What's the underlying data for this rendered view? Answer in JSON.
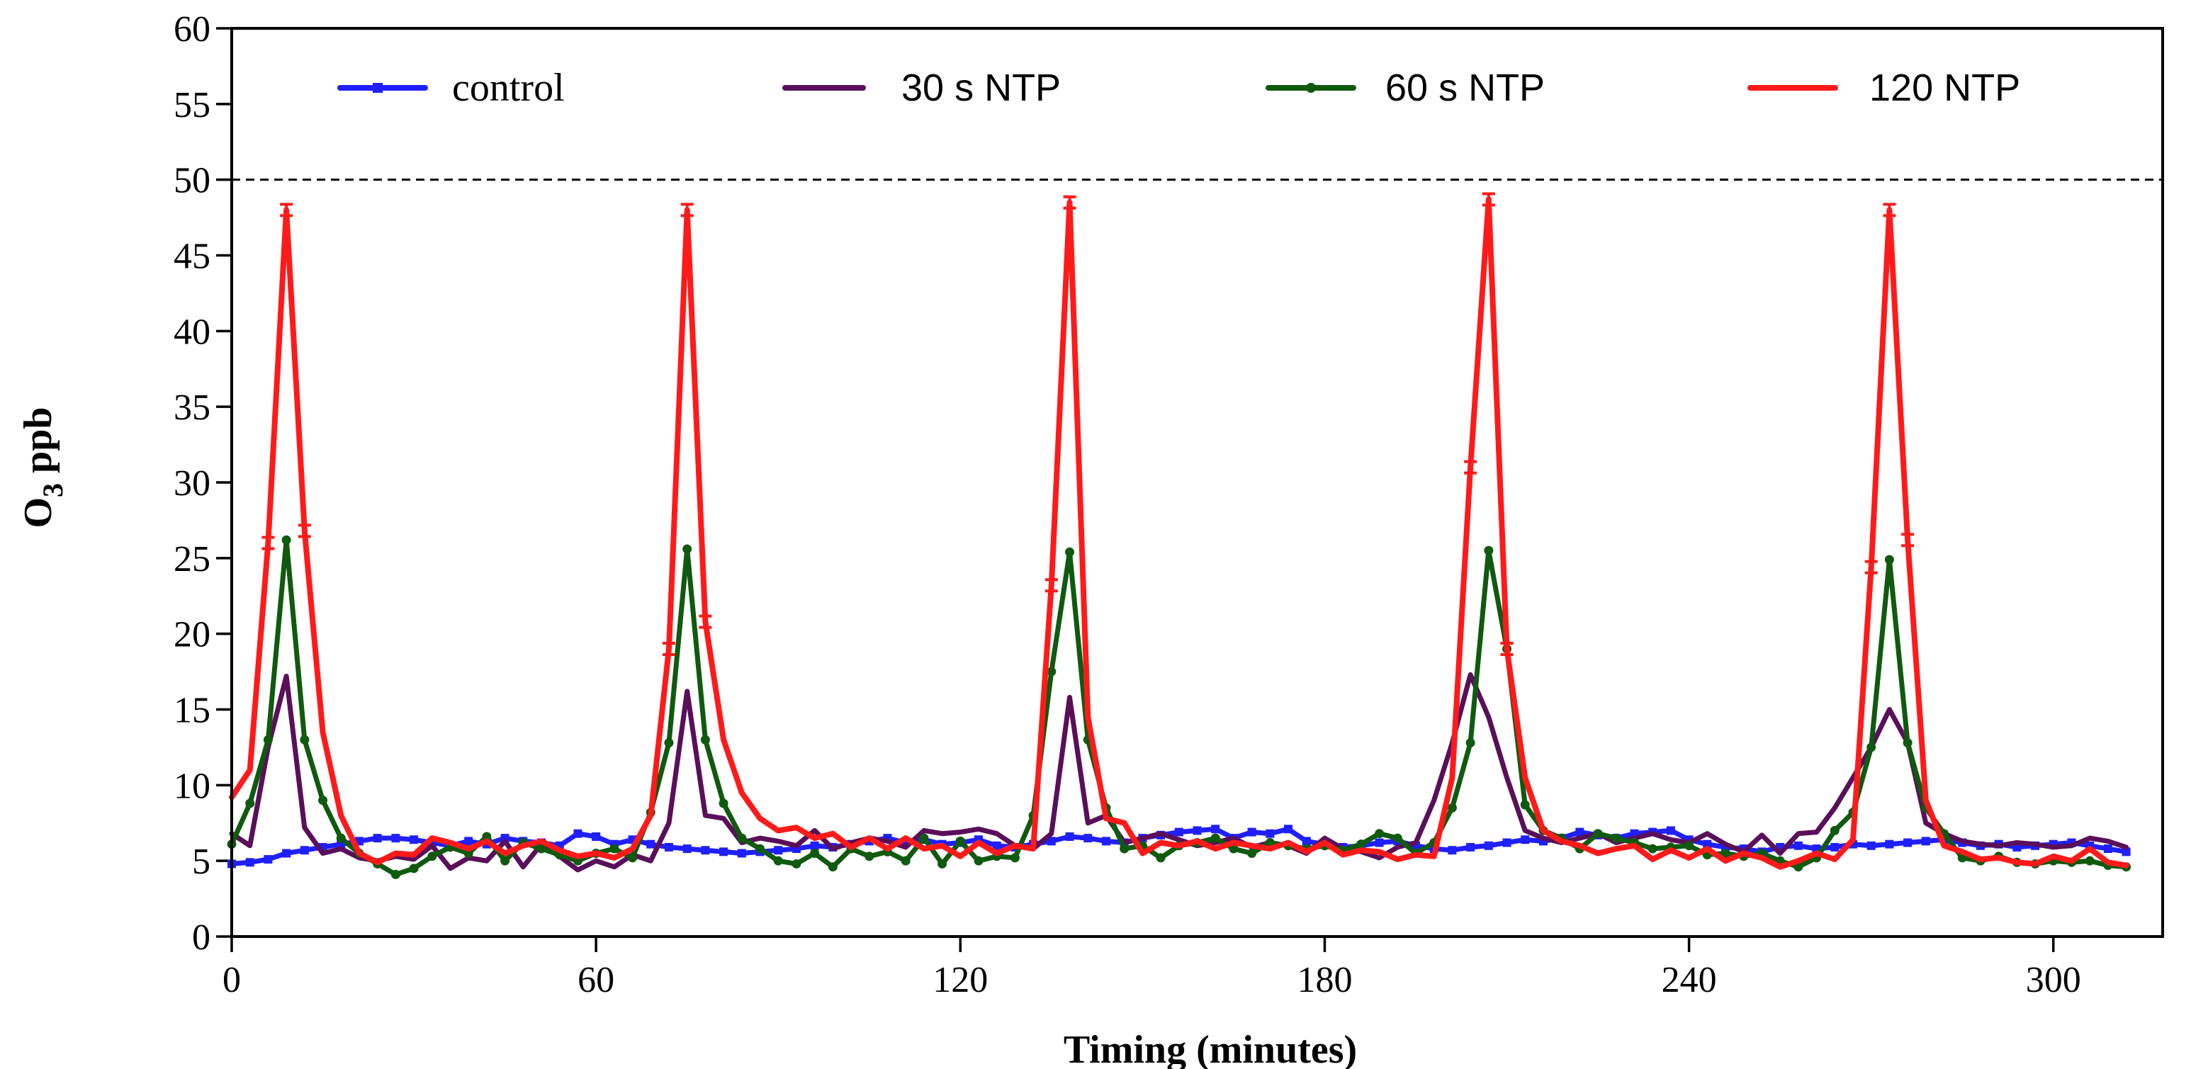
{
  "chart_data": {
    "type": "line",
    "title": "",
    "xlabel": "Timing (minutes)",
    "ylabel_main": "O",
    "ylabel_sub": "3",
    "ylabel_unit": " ppb",
    "xlim": [
      0,
      318
    ],
    "ylim": [
      0,
      60
    ],
    "xticks": [
      0,
      60,
      120,
      180,
      240,
      300
    ],
    "xtick_labels": [
      "0",
      "60",
      "120",
      "180",
      "240",
      "300"
    ],
    "yticks": [
      0,
      5,
      10,
      15,
      20,
      25,
      30,
      35,
      40,
      45,
      50,
      55,
      60
    ],
    "ytick_labels": [
      "0",
      "5",
      "10",
      "15",
      "20",
      "25",
      "30",
      "35",
      "40",
      "45",
      "50",
      "55",
      "60"
    ],
    "reference_line": {
      "y": 50,
      "style": "dashed"
    },
    "legend_position": "top",
    "series": [
      {
        "name": "control",
        "color": "#1f1fff",
        "marker": "square",
        "x": [
          0,
          3,
          6,
          9,
          12,
          15,
          18,
          21,
          24,
          27,
          30,
          33,
          36,
          39,
          42,
          45,
          48,
          51,
          54,
          57,
          60,
          63,
          66,
          69,
          72,
          75,
          78,
          81,
          84,
          87,
          90,
          93,
          96,
          99,
          102,
          105,
          108,
          111,
          114,
          117,
          120,
          123,
          126,
          129,
          132,
          135,
          138,
          141,
          144,
          147,
          150,
          153,
          156,
          159,
          162,
          165,
          168,
          171,
          174,
          177,
          180,
          183,
          186,
          189,
          192,
          195,
          198,
          201,
          204,
          207,
          210,
          213,
          216,
          219,
          222,
          225,
          228,
          231,
          234,
          237,
          240,
          243,
          246,
          249,
          252,
          255,
          258,
          261,
          264,
          267,
          270,
          273,
          276,
          279,
          282,
          285,
          288,
          291,
          294,
          297,
          300,
          303,
          306,
          309,
          312
        ],
        "values": [
          4.8,
          4.9,
          5.1,
          5.5,
          5.7,
          5.9,
          6.1,
          6.3,
          6.5,
          6.5,
          6.4,
          6.2,
          6.0,
          6.3,
          6.1,
          6.5,
          6.3,
          6.2,
          6.0,
          6.8,
          6.6,
          6.1,
          6.4,
          6.1,
          5.9,
          5.8,
          5.7,
          5.6,
          5.5,
          5.6,
          5.7,
          5.8,
          6.0,
          5.9,
          6.1,
          6.3,
          6.5,
          6.2,
          6.4,
          6.1,
          6.2,
          6.4,
          6.0,
          5.9,
          6.1,
          6.3,
          6.6,
          6.5,
          6.3,
          6.2,
          6.5,
          6.7,
          6.9,
          7.0,
          7.1,
          6.5,
          6.9,
          6.8,
          7.1,
          6.3,
          6.1,
          5.9,
          6.0,
          6.2,
          6.3,
          6.0,
          5.8,
          5.7,
          5.9,
          6.0,
          6.2,
          6.4,
          6.3,
          6.5,
          6.9,
          6.7,
          6.5,
          6.8,
          6.9,
          7.0,
          6.4,
          6.1,
          5.9,
          5.8,
          5.6,
          5.9,
          6.0,
          5.8,
          5.9,
          6.1,
          6.0,
          6.1,
          6.2,
          6.3,
          6.4,
          6.2,
          6.0,
          6.1,
          5.9,
          6.0,
          6.1,
          6.2,
          6.0,
          5.8,
          5.6
        ]
      },
      {
        "name": "30 s NTP",
        "color": "#5a0f5a",
        "marker": "none",
        "x": [
          0,
          3,
          6,
          9,
          12,
          15,
          18,
          21,
          24,
          27,
          30,
          33,
          36,
          39,
          42,
          45,
          48,
          51,
          54,
          57,
          60,
          63,
          66,
          69,
          72,
          75,
          78,
          81,
          84,
          87,
          90,
          93,
          96,
          99,
          102,
          105,
          108,
          111,
          114,
          117,
          120,
          123,
          126,
          129,
          132,
          135,
          138,
          141,
          144,
          147,
          150,
          153,
          156,
          159,
          162,
          165,
          168,
          171,
          174,
          177,
          180,
          183,
          186,
          189,
          192,
          195,
          198,
          201,
          204,
          207,
          210,
          213,
          216,
          219,
          222,
          225,
          228,
          231,
          234,
          237,
          240,
          243,
          246,
          249,
          252,
          255,
          258,
          261,
          264,
          267,
          270,
          273,
          276,
          279,
          282,
          285,
          288,
          291,
          294,
          297,
          300,
          303,
          306,
          309,
          312
        ],
        "values": [
          6.8,
          6.0,
          12.5,
          17.2,
          7.2,
          5.5,
          5.8,
          5.2,
          5.0,
          5.3,
          5.1,
          6.0,
          4.5,
          5.2,
          5.0,
          6.3,
          4.6,
          6.1,
          5.3,
          4.4,
          5.0,
          4.6,
          5.4,
          5.0,
          7.5,
          16.2,
          8.0,
          7.8,
          6.2,
          6.5,
          6.3,
          6.0,
          7.0,
          5.8,
          6.2,
          6.5,
          6.3,
          5.9,
          7.0,
          6.8,
          6.9,
          7.1,
          6.8,
          6.0,
          5.8,
          6.8,
          15.8,
          7.5,
          8.0,
          6.2,
          6.5,
          6.8,
          6.4,
          6.0,
          6.2,
          6.5,
          5.9,
          6.2,
          6.0,
          5.5,
          6.5,
          5.8,
          5.6,
          5.2,
          5.9,
          6.2,
          9.0,
          12.8,
          17.3,
          14.5,
          10.5,
          7.0,
          6.5,
          6.2,
          6.5,
          6.8,
          6.2,
          6.5,
          6.8,
          6.4,
          6.2,
          6.8,
          6.1,
          5.6,
          6.7,
          5.5,
          6.8,
          6.9,
          8.5,
          10.5,
          12.5,
          15.0,
          12.8,
          7.5,
          6.8,
          6.3,
          6.1,
          6.0,
          6.2,
          6.1,
          5.9,
          6.0,
          6.5,
          6.3,
          5.9
        ]
      },
      {
        "name": "60 s NTP",
        "color": "#0f5a0f",
        "marker": "circle",
        "x": [
          0,
          3,
          6,
          9,
          12,
          15,
          18,
          21,
          24,
          27,
          30,
          33,
          36,
          39,
          42,
          45,
          48,
          51,
          54,
          57,
          60,
          63,
          66,
          69,
          72,
          75,
          78,
          81,
          84,
          87,
          90,
          93,
          96,
          99,
          102,
          105,
          108,
          111,
          114,
          117,
          120,
          123,
          126,
          129,
          132,
          135,
          138,
          141,
          144,
          147,
          150,
          153,
          156,
          159,
          162,
          165,
          168,
          171,
          174,
          177,
          180,
          183,
          186,
          189,
          192,
          195,
          198,
          201,
          204,
          207,
          210,
          213,
          216,
          219,
          222,
          225,
          228,
          231,
          234,
          237,
          240,
          243,
          246,
          249,
          252,
          255,
          258,
          261,
          264,
          267,
          270,
          273,
          276,
          279,
          282,
          285,
          288,
          291,
          294,
          297,
          300,
          303,
          306,
          309,
          312
        ],
        "values": [
          6.1,
          8.8,
          13.0,
          26.2,
          13.0,
          9.0,
          6.5,
          5.5,
          4.8,
          4.1,
          4.5,
          5.3,
          5.9,
          5.5,
          6.6,
          5.0,
          6.2,
          5.8,
          5.4,
          5.0,
          5.5,
          5.8,
          5.2,
          8.2,
          12.8,
          25.6,
          13.0,
          8.8,
          6.5,
          5.8,
          5.0,
          4.8,
          5.5,
          4.6,
          5.8,
          5.3,
          5.6,
          5.0,
          6.5,
          4.8,
          6.3,
          5.0,
          5.3,
          5.2,
          8.0,
          17.5,
          25.4,
          13.0,
          8.5,
          5.8,
          6.0,
          5.2,
          6.0,
          6.2,
          6.5,
          5.8,
          5.5,
          6.2,
          6.0,
          5.8,
          6.0,
          5.7,
          6.1,
          6.8,
          6.5,
          5.5,
          6.2,
          8.5,
          12.8,
          25.5,
          19.0,
          8.7,
          7.0,
          6.5,
          5.8,
          6.8,
          6.5,
          6.2,
          5.8,
          5.9,
          6.0,
          5.4,
          5.5,
          5.3,
          5.5,
          5.0,
          4.6,
          5.2,
          7.0,
          8.2,
          12.5,
          24.9,
          12.8,
          8.5,
          6.8,
          5.2,
          5.0,
          5.3,
          4.9,
          4.8,
          5.0,
          4.9,
          5.0,
          4.7,
          4.6
        ]
      },
      {
        "name": "120 NTP",
        "color": "#ff1a1a",
        "marker": "errorbar",
        "x": [
          0,
          3,
          6,
          9,
          12,
          15,
          18,
          21,
          24,
          27,
          30,
          33,
          36,
          39,
          42,
          45,
          48,
          51,
          54,
          57,
          60,
          63,
          66,
          69,
          72,
          75,
          78,
          81,
          84,
          87,
          90,
          93,
          96,
          99,
          102,
          105,
          108,
          111,
          114,
          117,
          120,
          123,
          126,
          129,
          132,
          135,
          138,
          141,
          144,
          147,
          150,
          153,
          156,
          159,
          162,
          165,
          168,
          171,
          174,
          177,
          180,
          183,
          186,
          189,
          192,
          195,
          198,
          201,
          204,
          207,
          210,
          213,
          216,
          219,
          222,
          225,
          228,
          231,
          234,
          237,
          240,
          243,
          246,
          249,
          252,
          255,
          258,
          261,
          264,
          267,
          270,
          273,
          276,
          279,
          282,
          285,
          288,
          291,
          294,
          297,
          300,
          303,
          306,
          309,
          312
        ],
        "values": [
          9.2,
          11.0,
          26.0,
          48.0,
          26.8,
          13.5,
          8.0,
          5.5,
          4.9,
          5.5,
          5.4,
          6.5,
          6.2,
          5.8,
          6.3,
          5.5,
          6.0,
          6.3,
          5.7,
          5.3,
          5.5,
          5.2,
          5.8,
          8.0,
          19.0,
          48.0,
          20.8,
          13.0,
          9.5,
          7.8,
          7.0,
          7.2,
          6.5,
          6.8,
          5.9,
          6.5,
          5.8,
          6.5,
          5.8,
          6.0,
          5.3,
          6.2,
          5.5,
          6.0,
          5.8,
          23.2,
          48.5,
          14.5,
          7.8,
          7.5,
          5.5,
          6.2,
          6.0,
          6.3,
          5.8,
          6.2,
          6.0,
          5.8,
          6.2,
          5.6,
          6.2,
          5.4,
          5.7,
          5.6,
          5.1,
          5.4,
          5.3,
          10.5,
          31.0,
          48.7,
          19.0,
          10.5,
          7.0,
          6.3,
          6.0,
          5.5,
          5.8,
          6.0,
          5.1,
          5.7,
          5.2,
          5.8,
          5.0,
          5.5,
          5.2,
          4.6,
          5.0,
          5.5,
          5.1,
          6.4,
          24.4,
          48.0,
          26.2,
          9.0,
          6.0,
          5.6,
          5.1,
          5.2,
          4.9,
          4.8,
          5.3,
          5.0,
          5.8,
          4.9,
          4.7
        ]
      }
    ]
  }
}
